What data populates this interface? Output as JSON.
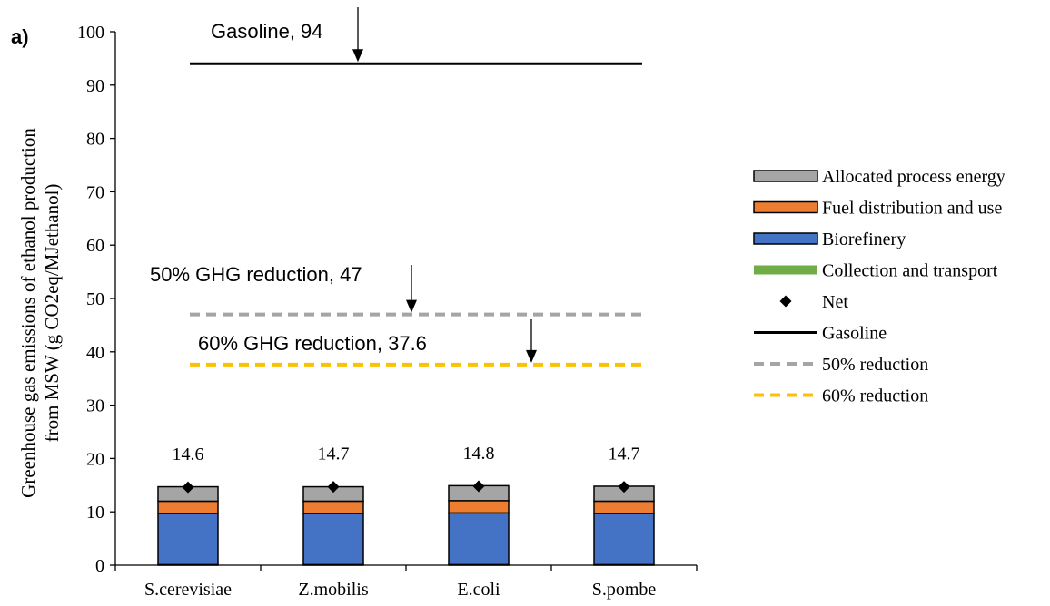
{
  "panel_label": "a)",
  "chart_data": {
    "type": "bar",
    "stacked": true,
    "categories": [
      "S.cerevisiae",
      "Z.mobilis",
      "E.coli",
      "S.pombe"
    ],
    "ylabel_line1": "Greenhouse gas emissions of ethanol production",
    "ylabel_line2": "from MSW (g CO2eq/MJethanol)",
    "ylim": [
      0,
      100
    ],
    "yticks": [
      0,
      10,
      20,
      30,
      40,
      50,
      60,
      70,
      80,
      90,
      100
    ],
    "grid": false,
    "legend_position": "right",
    "series": [
      {
        "name": "Collection and transport",
        "color": "#70ad47",
        "values": [
          0.1,
          0.1,
          0.1,
          0.1
        ]
      },
      {
        "name": "Biorefinery",
        "color": "#4472c4",
        "values": [
          9.6,
          9.6,
          9.7,
          9.6
        ]
      },
      {
        "name": "Fuel distribution and use",
        "color": "#ed7d31",
        "values": [
          2.3,
          2.3,
          2.3,
          2.3
        ]
      },
      {
        "name": "Allocated process energy",
        "color": "#a5a5a5",
        "values": [
          2.7,
          2.7,
          2.8,
          2.8
        ]
      }
    ],
    "net": {
      "name": "Net",
      "values": [
        14.6,
        14.7,
        14.8,
        14.7
      ],
      "labels": [
        "14.6",
        "14.7",
        "14.8",
        "14.7"
      ]
    },
    "reference_lines": [
      {
        "name": "Gasoline",
        "value": 94,
        "color": "#000000",
        "style": "solid",
        "annotation": "Gasoline, 94"
      },
      {
        "name": "50% reduction",
        "value": 47,
        "color": "#a5a5a5",
        "style": "dashed",
        "annotation": "50% GHG reduction, 47"
      },
      {
        "name": "60% reduction",
        "value": 37.6,
        "color": "#ffc000",
        "style": "dashed",
        "annotation": "60% GHG reduction, 37.6"
      }
    ],
    "legend": [
      {
        "label": "Allocated process energy",
        "kind": "box",
        "color": "#a5a5a5"
      },
      {
        "label": "Fuel distribution and use",
        "kind": "box",
        "color": "#ed7d31"
      },
      {
        "label": "Biorefinery",
        "kind": "box",
        "color": "#4472c4"
      },
      {
        "label": "Collection and transport",
        "kind": "bar",
        "color": "#70ad47"
      },
      {
        "label": "Net",
        "kind": "diamond",
        "color": "#000000"
      },
      {
        "label": "Gasoline",
        "kind": "solid",
        "color": "#000000"
      },
      {
        "label": "50% reduction",
        "kind": "dashed",
        "color": "#a5a5a5"
      },
      {
        "label": "60% reduction",
        "kind": "dashed",
        "color": "#ffc000"
      }
    ]
  }
}
